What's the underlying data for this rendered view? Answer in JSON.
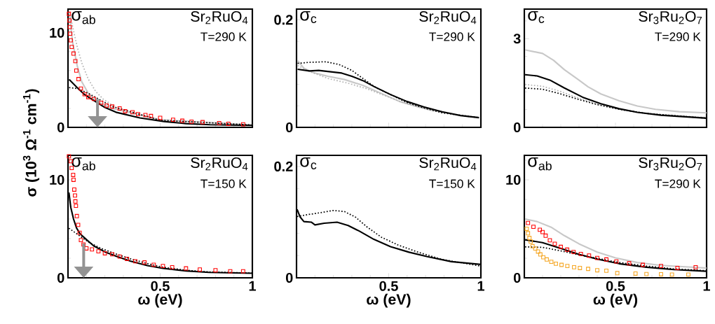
{
  "chart_data": [
    {
      "type": "line",
      "xlim": [
        0,
        1
      ],
      "ylim": [
        0,
        12.5
      ],
      "xticks": [
        0.5,
        1
      ],
      "yticks": [
        0,
        10
      ],
      "tick_labels": "y",
      "ylabel": "σ (10$^{3}$ Ω$^{-1}$ cm$^{-1}$)",
      "annotations": [
        "σ$_{ab}$",
        "Sr$_{2}$RuO$_{4}$",
        "T=290 K"
      ],
      "series": [
        {
          "type": "line",
          "color": "#c8c8c8",
          "line_style": "solid",
          "x": [
            0.006,
            0.025,
            0.05,
            0.075,
            0.11,
            0.16,
            0.24,
            0.5,
            1
          ],
          "values": [
            12.2,
            9.0,
            6.5,
            4.8,
            3.6,
            2.7,
            2.0,
            0.8,
            0.25
          ]
        },
        {
          "type": "line",
          "color": "#b4b4b4",
          "line_style": "dotted",
          "x": [
            0.013,
            0.05,
            0.075,
            0.11,
            0.15,
            0.19,
            0.26,
            0.5,
            1
          ],
          "values": [
            11.7,
            8.5,
            6.8,
            5.1,
            3.8,
            3.0,
            2.1,
            0.8,
            0.25
          ]
        },
        {
          "type": "line",
          "color": "#000000",
          "line_style": "dotted",
          "x": [
            0.006,
            0.05,
            0.11,
            0.18,
            0.24,
            0.5,
            1
          ],
          "values": [
            4.2,
            4.1,
            3.6,
            2.84,
            2.2,
            0.75,
            0.25
          ]
        },
        {
          "type": "line",
          "color": "#000000",
          "line_style": "solid",
          "x": [
            0.006,
            0.05,
            0.09,
            0.14,
            0.2,
            0.26,
            0.39,
            0.52,
            0.64,
            0.77,
            1
          ],
          "values": [
            5.06,
            4.2,
            3.46,
            2.84,
            2.1,
            1.6,
            1.0,
            0.62,
            0.4,
            0.28,
            0.2
          ]
        },
        {
          "type": "scatter",
          "color": "#ff0000",
          "marker": "square",
          "x": [
            0.005,
            0.008,
            0.01,
            0.012,
            0.015,
            0.02,
            0.03,
            0.04,
            0.045,
            0.057,
            0.07,
            0.09,
            0.11,
            0.14,
            0.18,
            0.21,
            0.24,
            0.28,
            0.31,
            0.35,
            0.38,
            0.42,
            0.45,
            0.5,
            0.57,
            0.62,
            0.67,
            0.73,
            0.82,
            0.87,
            0.95
          ],
          "values": [
            12.0,
            11.3,
            10.6,
            9.9,
            9.2,
            8.5,
            7.8,
            7.0,
            6.0,
            5.1,
            4.1,
            3.5,
            3.2,
            3.0,
            2.6,
            2.3,
            2.2,
            2.0,
            1.7,
            1.6,
            1.4,
            1.3,
            1.2,
            1.0,
            0.8,
            0.7,
            0.6,
            0.55,
            0.45,
            0.37,
            0.32
          ]
        }
      ]
    },
    {
      "type": "line",
      "xlim": [
        0,
        1
      ],
      "ylim": [
        0,
        0.22
      ],
      "xticks": [
        0.5,
        1
      ],
      "yticks": [
        0,
        0.2
      ],
      "tick_labels": "y",
      "annotations": [
        "σ$_{c}$",
        "Sr$_{2}$RuO$_{4}$",
        "T=290 K"
      ],
      "series": [
        {
          "type": "line",
          "color": "#c8c8c8",
          "line_style": "solid",
          "x": [
            0.006,
            0.04,
            0.09,
            0.17,
            0.26,
            0.36,
            0.46,
            0.56,
            0.66,
            0.79
          ],
          "values": [
            0.124,
            0.11,
            0.102,
            0.095,
            0.089,
            0.078,
            0.063,
            0.048,
            0.038,
            0.029
          ]
        },
        {
          "type": "line",
          "color": "#b4b4b4",
          "line_style": "dotted",
          "x": [
            0.006,
            0.07,
            0.17,
            0.28,
            0.38,
            0.48,
            0.58,
            0.71,
            0.8
          ],
          "values": [
            0.115,
            0.104,
            0.091,
            0.082,
            0.072,
            0.059,
            0.046,
            0.033,
            0.027
          ]
        },
        {
          "type": "line",
          "color": "#000000",
          "line_style": "dotted",
          "x": [
            0.006,
            0.07,
            0.16,
            0.23,
            0.3,
            0.36,
            0.43,
            0.51,
            0.6,
            0.7,
            0.79,
            0.99
          ],
          "values": [
            0.119,
            0.121,
            0.122,
            0.117,
            0.106,
            0.091,
            0.074,
            0.061,
            0.046,
            0.035,
            0.027,
            0.018
          ]
        },
        {
          "type": "line",
          "color": "#000000",
          "line_style": "solid",
          "x": [
            0.006,
            0.07,
            0.12,
            0.17,
            0.245,
            0.3,
            0.36,
            0.42,
            0.51,
            0.6,
            0.69,
            0.79,
            0.89,
            0.99
          ],
          "values": [
            0.108,
            0.105,
            0.106,
            0.104,
            0.101,
            0.095,
            0.087,
            0.076,
            0.061,
            0.048,
            0.038,
            0.029,
            0.022,
            0.018
          ]
        }
      ]
    },
    {
      "type": "line",
      "xlim": [
        0,
        1
      ],
      "ylim": [
        0,
        4
      ],
      "xticks": [
        0.5,
        1
      ],
      "yticks": [
        0,
        3
      ],
      "tick_labels": "y",
      "annotations": [
        "σ$_{c}$",
        "Sr$_{3}$Ru$_{2}$O$_{7}$",
        "T=290 K"
      ],
      "series": [
        {
          "type": "line",
          "color": "#c8c8c8",
          "line_style": "solid",
          "x": [
            0.004,
            0.1,
            0.16,
            0.22,
            0.29,
            0.35,
            0.42,
            0.52,
            0.62,
            0.72,
            0.85,
            1
          ],
          "values": [
            2.62,
            2.5,
            2.27,
            1.95,
            1.64,
            1.37,
            1.13,
            0.9,
            0.72,
            0.61,
            0.53,
            0.49
          ]
        },
        {
          "type": "line",
          "color": "#b4b4b4",
          "line_style": "dotted",
          "x": [
            0.004,
            0.1,
            0.2,
            0.3,
            0.4,
            0.52,
            0.67,
            1
          ],
          "values": [
            1.45,
            1.39,
            1.21,
            0.98,
            0.78,
            0.61,
            0.47,
            0.33
          ]
        },
        {
          "type": "line",
          "color": "#000000",
          "line_style": "dotted",
          "x": [
            0.004,
            0.1,
            0.2,
            0.3,
            0.4,
            0.52,
            0.67,
            1
          ],
          "values": [
            1.33,
            1.29,
            1.13,
            0.94,
            0.77,
            0.61,
            0.47,
            0.31
          ]
        },
        {
          "type": "line",
          "color": "#000000",
          "line_style": "solid",
          "x": [
            0.004,
            0.07,
            0.14,
            0.22,
            0.32,
            0.42,
            0.52,
            0.62,
            0.75,
            1
          ],
          "values": [
            1.78,
            1.74,
            1.6,
            1.33,
            1.02,
            0.8,
            0.63,
            0.51,
            0.41,
            0.31
          ]
        }
      ]
    },
    {
      "type": "line",
      "xlim": [
        0,
        1
      ],
      "ylim": [
        0,
        12.5
      ],
      "xticks": [
        0.5,
        1
      ],
      "yticks": [
        0,
        10
      ],
      "xlabel": "ω (eV)",
      "annotations": [
        "σ$_{ab}$",
        "Sr$_{2}$RuO$_{4}$",
        "T=150 K"
      ],
      "series": [
        {
          "type": "line",
          "color": "#000000",
          "line_style": "dotted",
          "x": [
            0.005,
            0.05,
            0.115,
            0.18,
            0.265,
            0.34,
            0.43,
            0.515,
            0.64,
            0.765,
            1
          ],
          "values": [
            5.06,
            4.46,
            3.6,
            3.0,
            2.4,
            1.93,
            1.45,
            1.08,
            0.77,
            0.6,
            0.48
          ]
        },
        {
          "type": "line",
          "color": "#000000",
          "line_style": "solid",
          "x": [
            0.005,
            0.015,
            0.03,
            0.046,
            0.065,
            0.1,
            0.14,
            0.2,
            0.265,
            0.34,
            0.43,
            0.515,
            0.64,
            0.765,
            1
          ],
          "values": [
            8.7,
            7.2,
            6.0,
            5.1,
            4.5,
            3.9,
            3.25,
            2.65,
            2.17,
            1.69,
            1.25,
            0.96,
            0.7,
            0.55,
            0.46
          ]
        },
        {
          "type": "scatter",
          "color": "#ff0000",
          "marker": "square",
          "x": [
            0.005,
            0.015,
            0.02,
            0.028,
            0.03,
            0.034,
            0.038,
            0.04,
            0.043,
            0.048,
            0.055,
            0.063,
            0.07,
            0.084,
            0.1,
            0.13,
            0.165,
            0.2,
            0.24,
            0.28,
            0.32,
            0.365,
            0.415,
            0.465,
            0.515,
            0.565,
            0.64,
            0.715,
            0.8,
            0.88,
            0.95
          ],
          "values": [
            12.4,
            11.9,
            11.2,
            10.5,
            10.0,
            9.0,
            8.4,
            7.8,
            7.35,
            6.3,
            5.4,
            4.6,
            3.85,
            3.4,
            3.0,
            2.9,
            2.7,
            2.5,
            2.4,
            2.17,
            1.93,
            1.69,
            1.57,
            1.33,
            1.2,
            1.08,
            0.96,
            0.84,
            0.77,
            0.67,
            0.67
          ]
        }
      ]
    },
    {
      "type": "line",
      "xlim": [
        0,
        1
      ],
      "ylim": [
        0,
        0.22
      ],
      "xticks": [
        0.5,
        1
      ],
      "yticks": [
        0,
        0.2
      ],
      "xlabel": "ω (eV)",
      "annotations": [
        "σ$_{c}$",
        "Sr$_{2}$RuO$_{4}$",
        "T=150 K"
      ],
      "series": [
        {
          "type": "line",
          "color": "#000000",
          "line_style": "dotted",
          "x": [
            0.003,
            0.05,
            0.13,
            0.2,
            0.26,
            0.32,
            0.38,
            0.46,
            0.55,
            0.66,
            0.79,
            1
          ],
          "values": [
            0.11,
            0.113,
            0.117,
            0.121,
            0.119,
            0.109,
            0.092,
            0.073,
            0.059,
            0.046,
            0.033,
            0.021
          ]
        },
        {
          "type": "line",
          "color": "#000000",
          "line_style": "solid",
          "x": [
            0.003,
            0.02,
            0.04,
            0.08,
            0.1,
            0.15,
            0.22,
            0.28,
            0.34,
            0.42,
            0.51,
            0.61,
            0.71,
            0.84,
            1
          ],
          "values": [
            0.123,
            0.109,
            0.101,
            0.1,
            0.095,
            0.098,
            0.1,
            0.094,
            0.084,
            0.069,
            0.056,
            0.046,
            0.038,
            0.029,
            0.024
          ]
        }
      ]
    },
    {
      "type": "line",
      "xlim": [
        0,
        1
      ],
      "ylim": [
        0,
        12.5
      ],
      "xticks": [
        0.5,
        1
      ],
      "yticks": [
        0,
        10
      ],
      "xlabel": "ω (eV)",
      "annotations": [
        "σ$_{ab}$",
        "Sr$_{3}$Ru$_{2}$O$_{7}$",
        "T=290 K"
      ],
      "series": [
        {
          "type": "line",
          "color": "#c8c8c8",
          "line_style": "solid",
          "x": [
            0.004,
            0.07,
            0.15,
            0.22,
            0.3,
            0.4,
            0.5,
            0.62,
            0.75,
            1
          ],
          "values": [
            6.0,
            5.74,
            5.14,
            4.3,
            3.47,
            2.63,
            2.03,
            1.56,
            1.27,
            1.0
          ]
        },
        {
          "type": "line",
          "color": "#000000",
          "line_style": "dotted",
          "x": [
            0.004,
            0.1,
            0.2,
            0.3,
            0.4,
            0.52,
            0.67,
            0.82,
            1
          ],
          "values": [
            3.16,
            3.11,
            2.75,
            2.34,
            1.99,
            1.56,
            1.2,
            0.91,
            0.72
          ]
        },
        {
          "type": "line",
          "color": "#000000",
          "line_style": "solid",
          "x": [
            0.004,
            0.1,
            0.2,
            0.3,
            0.4,
            0.52,
            0.67,
            0.82,
            1
          ],
          "values": [
            3.88,
            3.59,
            3.0,
            2.39,
            1.91,
            1.44,
            1.08,
            0.84,
            0.67
          ]
        },
        {
          "type": "scatter",
          "color": "#ff0000",
          "marker": "square",
          "x": [
            0.02,
            0.05,
            0.085,
            0.1,
            0.117,
            0.14,
            0.167,
            0.2,
            0.235,
            0.27,
            0.31,
            0.355,
            0.4,
            0.45,
            0.505,
            0.575,
            0.65,
            0.75,
            0.84,
            0.94
          ],
          "values": [
            5.6,
            5.2,
            4.9,
            4.67,
            4.3,
            3.83,
            3.47,
            3.16,
            2.87,
            2.63,
            2.44,
            2.27,
            2.03,
            1.87,
            1.67,
            1.48,
            1.32,
            1.2,
            1.0,
            1.08
          ]
        },
        {
          "type": "scatter",
          "color": "#f5a623",
          "marker": "square",
          "x": [
            0.013,
            0.02,
            0.028,
            0.035,
            0.045,
            0.06,
            0.075,
            0.088,
            0.104,
            0.123,
            0.148,
            0.173,
            0.204,
            0.236,
            0.273,
            0.305,
            0.35,
            0.4,
            0.45,
            0.51,
            0.61,
            0.67,
            0.75,
            0.81,
            0.9
          ],
          "values": [
            5.0,
            4.55,
            4.07,
            3.7,
            3.23,
            2.99,
            2.68,
            2.39,
            2.1,
            1.87,
            1.63,
            1.44,
            1.32,
            1.2,
            1.08,
            1.0,
            0.91,
            0.77,
            0.72,
            0.48,
            0.43,
            0.38,
            0.36,
            0.33,
            0.33
          ]
        }
      ]
    }
  ]
}
